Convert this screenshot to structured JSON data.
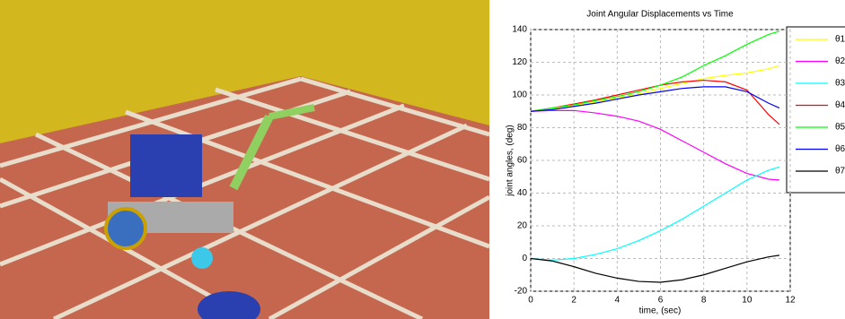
{
  "chart_data": {
    "type": "line",
    "title": "Joint Angular Displacements vs Time",
    "x_label": "time, (sec)",
    "y_label": "joint angles, (deg)",
    "x": [
      0,
      1,
      2,
      3,
      4,
      5,
      6,
      7,
      8,
      9,
      10,
      11,
      11.5
    ],
    "series": [
      {
        "name": "θ1",
        "color": "#ffff00",
        "values": [
          90,
          91.5,
          93.5,
          95.5,
          98,
          100.5,
          104,
          107,
          110,
          112,
          113.5,
          116,
          118
        ]
      },
      {
        "name": "θ2",
        "color": "#ff00ff",
        "values": [
          90,
          90.5,
          90.5,
          89,
          87,
          84,
          79,
          72,
          65,
          58,
          52,
          48.5,
          48
        ]
      },
      {
        "name": "θ3",
        "color": "#00ffff",
        "values": [
          0,
          -1,
          0,
          2.5,
          6,
          11,
          17,
          24,
          32,
          40,
          48,
          54,
          56
        ]
      },
      {
        "name": "θ4",
        "color": "#ff0000",
        "values": [
          90,
          92,
          94.5,
          97,
          100,
          103,
          106,
          108,
          109,
          108,
          103,
          88,
          82
        ]
      },
      {
        "name": "θ5",
        "color": "#00ff00",
        "values": [
          90,
          92,
          94,
          96.5,
          99,
          102,
          106,
          111,
          118,
          124,
          131,
          137,
          139
        ]
      },
      {
        "name": "θ6",
        "color": "#0000ff",
        "values": [
          90,
          91,
          93,
          95,
          97.5,
          100,
          102,
          104,
          105,
          105,
          102,
          95,
          92
        ]
      },
      {
        "name": "θ7",
        "color": "#000000",
        "values": [
          0,
          -1.5,
          -5,
          -9,
          -12,
          -14,
          -14.5,
          -13,
          -10,
          -6,
          -2,
          1,
          2
        ]
      }
    ],
    "xlim": [
      0,
      12
    ],
    "xticks": [
      0,
      2,
      4,
      6,
      8,
      10,
      12
    ],
    "ylim": [
      -20,
      140
    ],
    "yticks": [
      -20,
      0,
      20,
      40,
      60,
      80,
      100,
      120,
      140
    ],
    "grid": true
  }
}
